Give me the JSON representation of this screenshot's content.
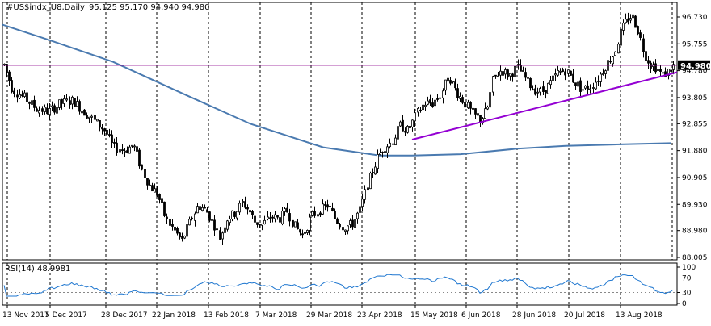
{
  "chart_data": {
    "type": "candlestick",
    "header": {
      "symbol": "#US$indx_U8,Daily",
      "ohlc": "95.125 95.170 94.940 94.980"
    },
    "current_price": "94.980",
    "price_ticks": [
      "96.730",
      "95.755",
      "94.780",
      "93.805",
      "92.855",
      "91.880",
      "90.905",
      "89.930",
      "88.980",
      "88.005"
    ],
    "x_ticks": [
      "13 Nov 2017",
      "5 Dec 2017",
      "28 Dec 2017",
      "22 Jan 2018",
      "13 Feb 2018",
      "7 Mar 2018",
      "29 Mar 2018",
      "23 Apr 2018",
      "15 May 2018",
      "6 Jun 2018",
      "28 Jun 2018",
      "20 Jul 2018",
      "13 Aug 2018"
    ],
    "ylim": [
      88.005,
      97.1
    ],
    "rsi": {
      "label": "RSI(14) 48.9981",
      "ticks": [
        "100",
        "70",
        "30",
        "0"
      ],
      "levels": [
        70,
        30
      ],
      "ylim": [
        0,
        100
      ]
    },
    "lines": [
      {
        "name": "horizontal",
        "color": "#8b008b"
      },
      {
        "name": "trendline",
        "color": "#9400d3",
        "points": [
          {
            "date": "2018-05-15",
            "price": 92.28
          },
          {
            "date": "2018-08-22",
            "price": 94.72
          }
        ]
      }
    ],
    "moving_average_color": "#4a7ab0",
    "rsi_color": "#1f77d0",
    "bull_color": "#ffffff",
    "bear_color": "#000000"
  }
}
